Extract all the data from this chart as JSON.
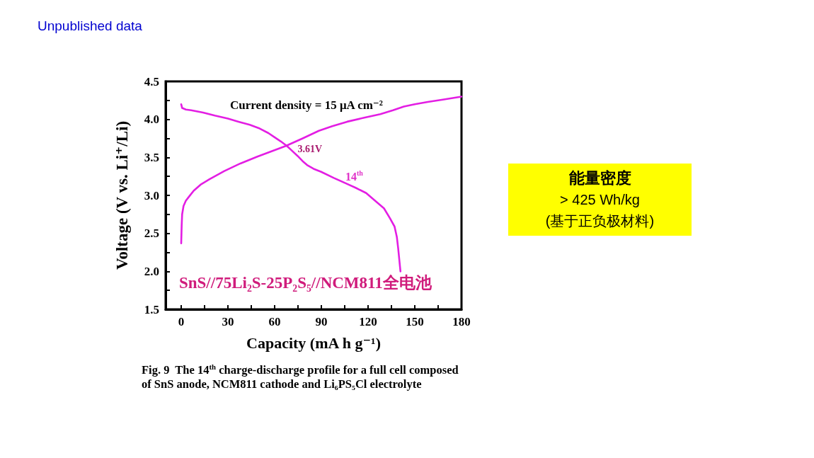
{
  "chart_data": [
    {
      "type": "line",
      "xlabel": "Capacity (mA h g⁻¹)",
      "ylabel": "Voltage (V vs. Li⁺/Li)",
      "xlim": [
        -10,
        180
      ],
      "ylim": [
        1.5,
        4.5
      ],
      "xticks": [
        0,
        {
          "value": 15,
          "label": null
        },
        30,
        {
          "value": 45,
          "label": null
        },
        60,
        {
          "value": 75,
          "label": null
        },
        90,
        {
          "value": 105,
          "label": null
        },
        120,
        {
          "value": 135,
          "label": null
        },
        150,
        {
          "value": 165,
          "label": null
        },
        180
      ],
      "yticks": [
        1.5,
        {
          "value": 1.75,
          "label": null
        },
        {
          "value": 2,
          "label": "2.0"
        },
        {
          "value": 2.25,
          "label": null
        },
        2.5,
        {
          "value": 2.75,
          "label": null
        },
        {
          "value": 3,
          "label": "3.0"
        },
        {
          "value": 3.25,
          "label": null
        },
        3.5,
        {
          "value": 3.75,
          "label": null
        },
        {
          "value": 4,
          "label": "4.0"
        },
        {
          "value": 4.25,
          "label": null
        },
        4.5
      ],
      "marker": "none",
      "line_style": "solid",
      "series": [
        {
          "color": "#e31ee3",
          "x": [
            0,
            0.3,
            0.6,
            1.5,
            3,
            4.9,
            8,
            12.4,
            18,
            27.7,
            38,
            48.9,
            58,
            67.1,
            78,
            88.4,
            97,
            106.6,
            117,
            127.9,
            136,
            143,
            150,
            158.3,
            168,
            180
          ],
          "values": [
            2.37,
            2.6,
            2.75,
            2.86,
            2.93,
            2.98,
            3.06,
            3.14,
            3.21,
            3.32,
            3.42,
            3.51,
            3.58,
            3.65,
            3.75,
            3.85,
            3.91,
            3.97,
            4.02,
            4.07,
            4.12,
            4.17,
            4.2,
            4.23,
            4.26,
            4.3
          ]
        },
        {
          "color": "#e31ee3",
          "x": [
            0,
            0.6,
            3,
            6.4,
            14,
            21.6,
            30,
            36.8,
            44,
            50.4,
            56,
            59.6,
            64,
            67.9,
            71,
            74.7,
            78,
            80.8,
            85,
            89.9,
            98,
            106.6,
            112,
            118.8,
            125,
            130.2,
            134,
            137,
            138.5,
            139.3,
            140.8
          ],
          "values": [
            4.2,
            4.15,
            4.13,
            4.12,
            4.09,
            4.05,
            4.01,
            3.97,
            3.93,
            3.88,
            3.82,
            3.77,
            3.71,
            3.65,
            3.59,
            3.52,
            3.45,
            3.4,
            3.35,
            3.31,
            3.23,
            3.15,
            3.1,
            3.03,
            2.92,
            2.83,
            2.7,
            2.59,
            2.45,
            2.31,
            2
          ]
        }
      ],
      "annotations": [
        "Current density = 15 μA cm⁻²",
        {
          "text": "3.61V",
          "x": 68,
          "y": 3.61
        },
        "14$^{th}$",
        "SnS//75Li₂S-25P₂S₅//NCM811全电池",
        "Fig. 9  The 14$^{th}$ charge-discharge profile for a full cell composed of SnS anode, NCM811 cathode and Li₆PS₅Cl electrolyte",
        "Unpublished data"
      ]
    },
    {
      "type": "other",
      "title": "能量密度",
      "annotations": [
        "> 425 Wh/kg",
        "(基于正负极材料)"
      ]
    }
  ]
}
